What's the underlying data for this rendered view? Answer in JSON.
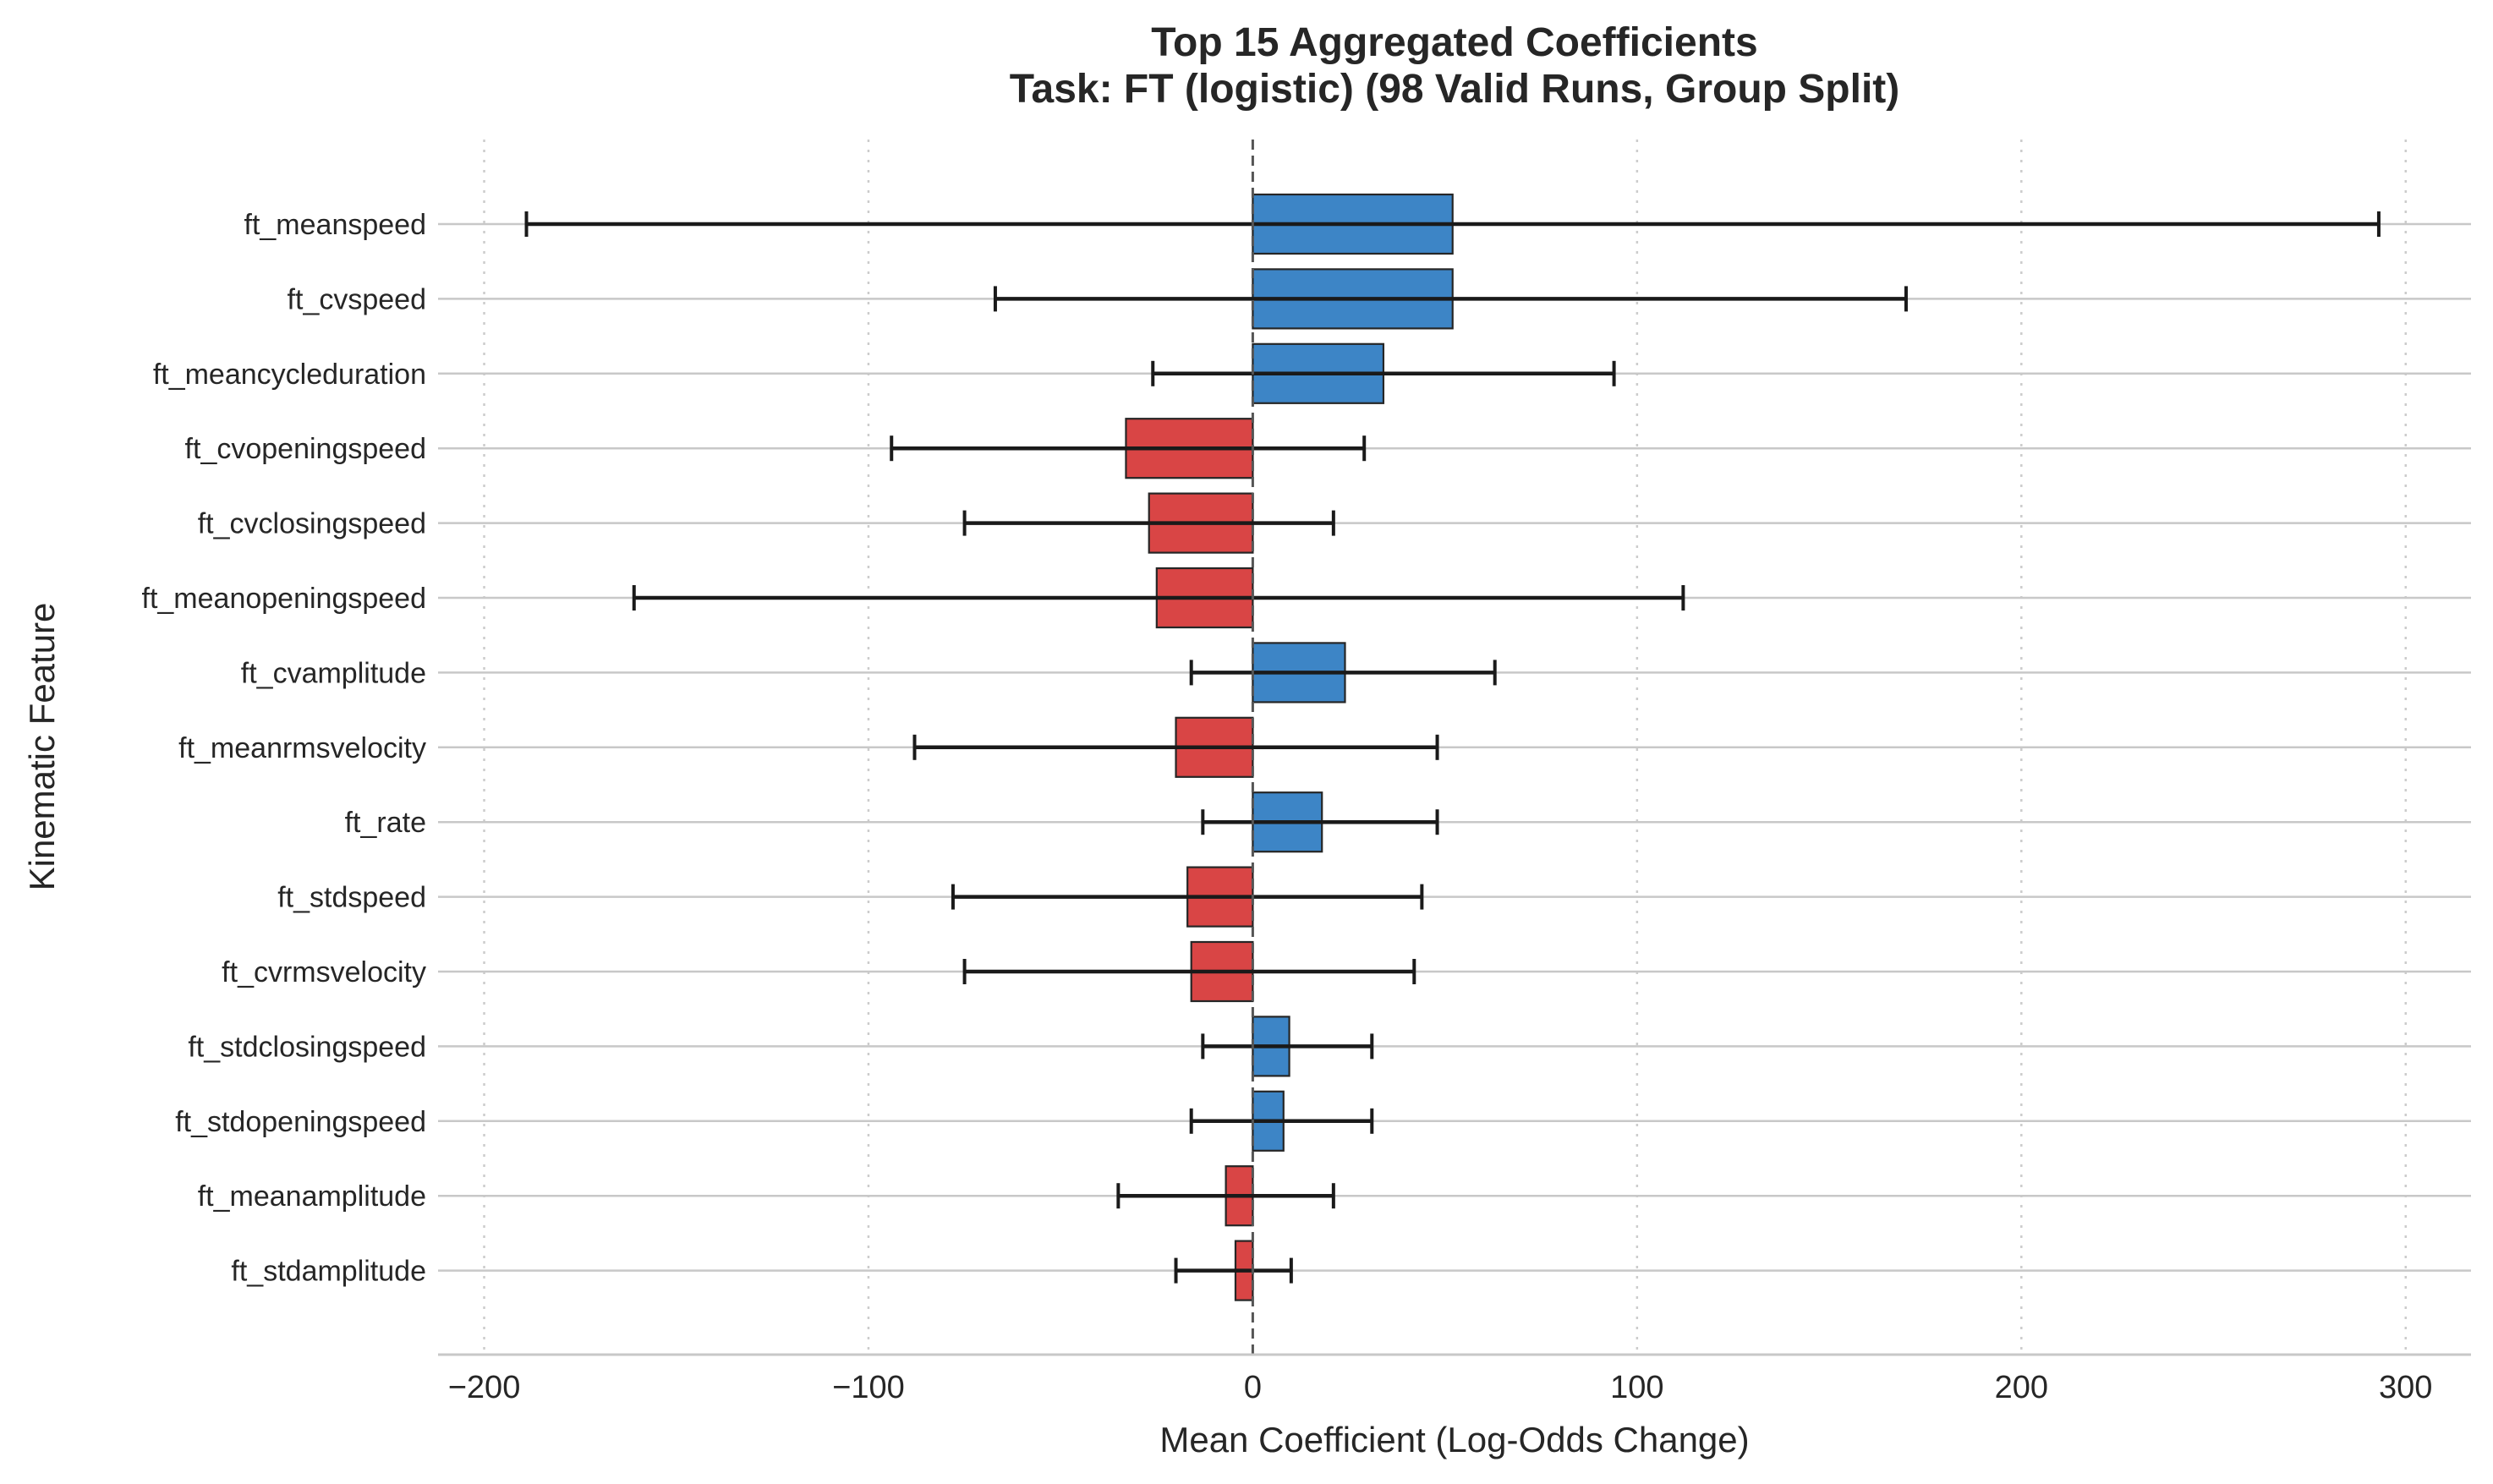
{
  "chart_data": {
    "type": "bar",
    "orientation": "horizontal",
    "title": [
      "Top 15 Aggregated Coefficients",
      "Task: FT (logistic) (98 Valid Runs, Group Split)"
    ],
    "xlabel": "Mean Coefficient (Log-Odds Change)",
    "ylabel": "Kinematic Feature",
    "xlim": [
      -212,
      317
    ],
    "xticks": [
      -200,
      -100,
      0,
      100,
      200,
      300
    ],
    "xtick_labels": [
      "−200",
      "−100",
      "0",
      "100",
      "200",
      "300"
    ],
    "grid": true,
    "positive_color": "#3d85c6",
    "negative_color": "#d94545",
    "categories": [
      "ft_meanspeed",
      "ft_cvspeed",
      "ft_meancycleduration",
      "ft_cvopeningspeed",
      "ft_cvclosingspeed",
      "ft_meanopeningspeed",
      "ft_cvamplitude",
      "ft_meanrmsvelocity",
      "ft_rate",
      "ft_stdspeed",
      "ft_cvrmsvelocity",
      "ft_stdclosingspeed",
      "ft_stdopeningspeed",
      "ft_meanamplitude",
      "ft_stdamplitude"
    ],
    "values": [
      52,
      52,
      34,
      -33,
      -27,
      -25,
      24,
      -20,
      18,
      -17,
      -16,
      9.5,
      8,
      -7,
      -4.5
    ],
    "err_low": [
      -189,
      -67,
      -26,
      -94,
      -75,
      -161,
      -16,
      -88,
      -13,
      -78,
      -75,
      -13,
      -16,
      -35,
      -20
    ],
    "err_high": [
      293,
      170,
      94,
      29,
      21,
      112,
      63,
      48,
      48,
      44,
      42,
      31,
      31,
      21,
      10
    ]
  }
}
